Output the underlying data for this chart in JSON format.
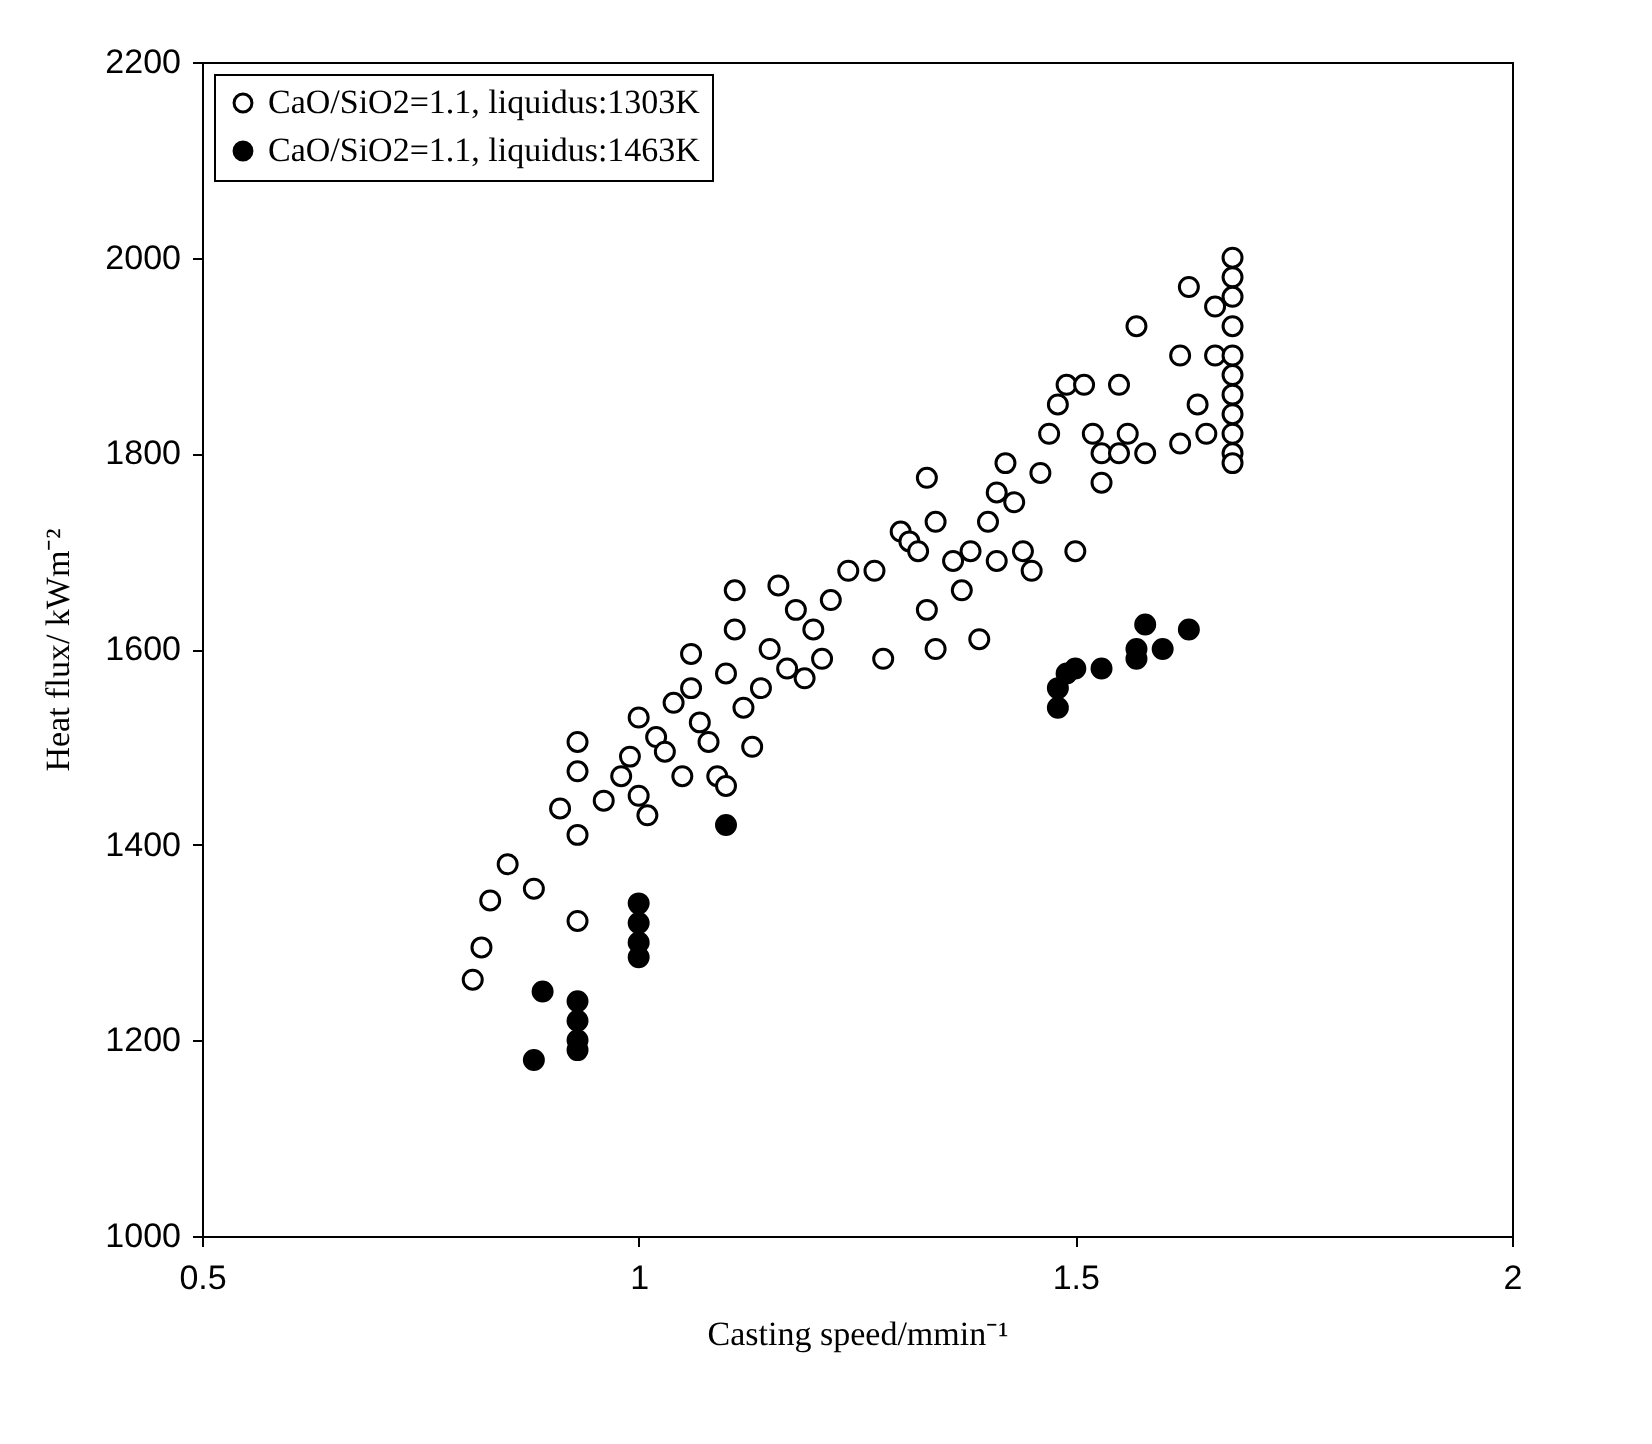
{
  "chart_data": {
    "type": "scatter",
    "xlabel": "Casting speed/mmin⁻¹",
    "ylabel": "Heat flux/ kWm⁻²",
    "xlim": [
      0.5,
      2
    ],
    "xticks": [
      0.5,
      1,
      1.5,
      2
    ],
    "ylim": [
      1000,
      2200
    ],
    "yticks": [
      1000,
      1200,
      1400,
      1600,
      1800,
      2000,
      2200
    ],
    "grid": false,
    "legend": "top left",
    "marker": "circle",
    "series": [
      {
        "name": "CaO/SiO2=1.1, liquidus:1303K",
        "color": "#ffffff",
        "x": [
          0.81,
          0.82,
          0.83,
          0.85,
          0.88,
          0.91,
          0.93,
          0.93,
          0.93,
          0.93,
          0.96,
          0.98,
          0.99,
          1.0,
          1.0,
          1.01,
          1.02,
          1.03,
          1.04,
          1.05,
          1.06,
          1.06,
          1.07,
          1.08,
          1.09,
          1.1,
          1.1,
          1.11,
          1.11,
          1.12,
          1.13,
          1.14,
          1.15,
          1.16,
          1.17,
          1.18,
          1.19,
          1.2,
          1.21,
          1.22,
          1.24,
          1.27,
          1.28,
          1.3,
          1.31,
          1.32,
          1.33,
          1.33,
          1.34,
          1.34,
          1.36,
          1.37,
          1.38,
          1.39,
          1.4,
          1.41,
          1.41,
          1.42,
          1.43,
          1.44,
          1.45,
          1.46,
          1.47,
          1.48,
          1.49,
          1.5,
          1.51,
          1.52,
          1.53,
          1.53,
          1.55,
          1.55,
          1.56,
          1.57,
          1.58,
          1.62,
          1.62,
          1.63,
          1.64,
          1.65,
          1.66,
          1.66,
          1.68,
          1.68,
          1.68,
          1.68,
          1.68,
          1.68,
          1.68,
          1.68,
          1.68,
          1.68,
          1.68
        ],
        "values": [
          1262,
          1295,
          1343,
          1380,
          1355,
          1437,
          1410,
          1475,
          1505,
          1322,
          1445,
          1470,
          1490,
          1530,
          1450,
          1430,
          1510,
          1495,
          1545,
          1470,
          1595,
          1560,
          1525,
          1505,
          1470,
          1575,
          1460,
          1620,
          1660,
          1540,
          1500,
          1560,
          1600,
          1665,
          1580,
          1640,
          1570,
          1620,
          1590,
          1650,
          1680,
          1680,
          1590,
          1720,
          1710,
          1700,
          1640,
          1775,
          1730,
          1600,
          1690,
          1660,
          1700,
          1610,
          1730,
          1760,
          1690,
          1790,
          1750,
          1700,
          1680,
          1780,
          1820,
          1850,
          1870,
          1700,
          1870,
          1820,
          1800,
          1770,
          1800,
          1870,
          1820,
          1930,
          1800,
          1810,
          1900,
          1970,
          1850,
          1820,
          1900,
          1950,
          2000,
          1980,
          1960,
          1930,
          1900,
          1880,
          1860,
          1840,
          1820,
          1800,
          1790
        ]
      },
      {
        "name": "CaO/SiO2=1.1, liquidus:1463K",
        "color": "#000000",
        "x": [
          0.88,
          0.89,
          0.93,
          0.93,
          0.93,
          0.93,
          1.0,
          1.0,
          1.0,
          1.0,
          1.1,
          1.48,
          1.48,
          1.49,
          1.5,
          1.53,
          1.57,
          1.57,
          1.58,
          1.6,
          1.63
        ],
        "values": [
          1180,
          1250,
          1240,
          1220,
          1200,
          1190,
          1340,
          1320,
          1300,
          1285,
          1420,
          1540,
          1560,
          1575,
          1580,
          1580,
          1600,
          1590,
          1625,
          1600,
          1620
        ]
      }
    ]
  }
}
